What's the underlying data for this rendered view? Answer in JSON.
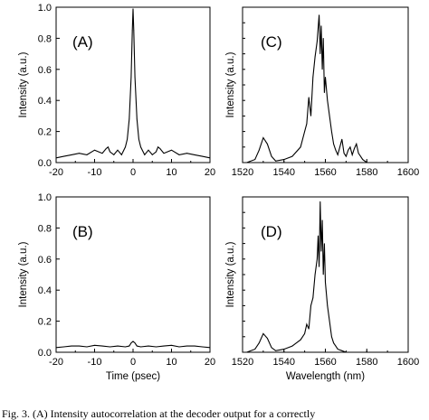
{
  "caption": "Fig. 3.   (A) Intensity autocorrelation at the decoder output for a correctly",
  "chart_data": [
    {
      "panel": "(A)",
      "type": "line",
      "xlabel": "",
      "ylabel": "Intensity (a.u.)",
      "xlim": [
        -20,
        20
      ],
      "ylim": [
        0,
        1.0
      ],
      "xticks": [
        "-20",
        "-10",
        "0",
        "10",
        "20"
      ],
      "yticks": [
        "0.0",
        "0.2",
        "0.4",
        "0.6",
        "0.8",
        "1.0"
      ],
      "x": [
        -20,
        -18,
        -16,
        -14,
        -12,
        -10,
        -8,
        -7,
        -6.5,
        -6,
        -5,
        -4,
        -3,
        -2,
        -1.5,
        -1,
        -0.5,
        -0.2,
        0,
        0.2,
        0.5,
        1,
        1.5,
        2,
        3,
        4,
        5,
        6,
        6.5,
        7,
        8,
        10,
        12,
        14,
        16,
        18,
        20
      ],
      "y": [
        0.03,
        0.04,
        0.05,
        0.06,
        0.05,
        0.08,
        0.06,
        0.09,
        0.1,
        0.07,
        0.05,
        0.08,
        0.05,
        0.1,
        0.15,
        0.28,
        0.55,
        0.85,
        0.99,
        0.85,
        0.55,
        0.28,
        0.15,
        0.1,
        0.05,
        0.08,
        0.05,
        0.07,
        0.1,
        0.09,
        0.06,
        0.08,
        0.05,
        0.06,
        0.05,
        0.04,
        0.03
      ]
    },
    {
      "panel": "(C)",
      "type": "line",
      "xlabel": "",
      "ylabel": "Intensity (a.u.)",
      "xlim": [
        1520,
        1600
      ],
      "ylim": [
        0,
        1.0
      ],
      "xticks": [
        "1520",
        "1540",
        "1560",
        "1580",
        "1600"
      ],
      "yticks": [],
      "x": [
        1522,
        1526,
        1528,
        1530,
        1532,
        1534,
        1536,
        1540,
        1544,
        1548,
        1550,
        1551,
        1552,
        1553,
        1554,
        1555,
        1556,
        1557,
        1557.5,
        1558,
        1558.5,
        1559,
        1559.5,
        1560,
        1561,
        1562,
        1563,
        1564,
        1565,
        1566,
        1567,
        1568,
        1569,
        1570,
        1571,
        1572,
        1573,
        1574,
        1575,
        1576,
        1577,
        1578,
        1580,
        1584
      ],
      "y": [
        0.0,
        0.02,
        0.08,
        0.16,
        0.12,
        0.04,
        0.01,
        0.02,
        0.04,
        0.1,
        0.2,
        0.25,
        0.42,
        0.3,
        0.55,
        0.68,
        0.78,
        0.95,
        0.7,
        0.88,
        0.6,
        0.8,
        0.45,
        0.55,
        0.4,
        0.3,
        0.2,
        0.12,
        0.08,
        0.05,
        0.1,
        0.15,
        0.06,
        0.04,
        0.08,
        0.1,
        0.05,
        0.09,
        0.12,
        0.06,
        0.04,
        0.02,
        0.0,
        0.0
      ]
    },
    {
      "panel": "(B)",
      "type": "line",
      "xlabel": "Time (psec)",
      "ylabel": "Intensity (a.u.)",
      "xlim": [
        -20,
        20
      ],
      "ylim": [
        0,
        1.0
      ],
      "xticks": [
        "-20",
        "-10",
        "0",
        "10",
        "20"
      ],
      "yticks": [
        "0.0",
        "0.2",
        "0.4",
        "0.6",
        "0.8",
        "1.0"
      ],
      "x": [
        -20,
        -18,
        -16,
        -14,
        -12,
        -10,
        -8,
        -6,
        -4,
        -2,
        -1,
        -0.5,
        0,
        0.5,
        1,
        2,
        4,
        6,
        8,
        10,
        12,
        14,
        16,
        18,
        20
      ],
      "y": [
        0.03,
        0.035,
        0.04,
        0.04,
        0.035,
        0.045,
        0.04,
        0.035,
        0.04,
        0.035,
        0.04,
        0.06,
        0.07,
        0.06,
        0.04,
        0.035,
        0.04,
        0.035,
        0.04,
        0.045,
        0.035,
        0.04,
        0.04,
        0.035,
        0.03
      ]
    },
    {
      "panel": "(D)",
      "type": "line",
      "xlabel": "Wavelength (nm)",
      "ylabel": "Intensity (a.u.)",
      "xlim": [
        1520,
        1600
      ],
      "ylim": [
        0,
        1.0
      ],
      "xticks": [
        "1520",
        "1540",
        "1560",
        "1580",
        "1600"
      ],
      "yticks": [],
      "x": [
        1522,
        1526,
        1528,
        1530,
        1532,
        1534,
        1536,
        1540,
        1544,
        1548,
        1550,
        1551,
        1552,
        1553,
        1554,
        1555,
        1556,
        1556.5,
        1557,
        1557.5,
        1558,
        1558.5,
        1559,
        1559.5,
        1560,
        1561,
        1562,
        1563,
        1564,
        1565,
        1566,
        1568,
        1570,
        1575
      ],
      "y": [
        0.0,
        0.02,
        0.06,
        0.12,
        0.09,
        0.03,
        0.01,
        0.02,
        0.04,
        0.08,
        0.12,
        0.18,
        0.15,
        0.3,
        0.35,
        0.5,
        0.6,
        0.75,
        0.55,
        0.97,
        0.65,
        0.85,
        0.5,
        0.7,
        0.45,
        0.3,
        0.2,
        0.1,
        0.06,
        0.04,
        0.02,
        0.01,
        0.0,
        0.0
      ]
    }
  ]
}
